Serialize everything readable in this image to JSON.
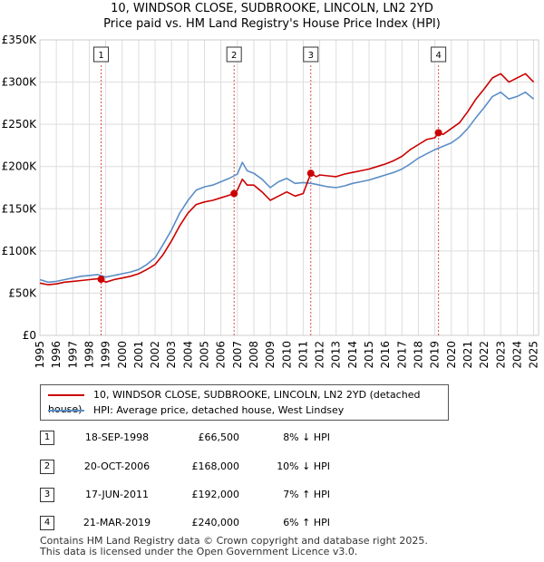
{
  "chart_data": {
    "type": "line",
    "title": "10, WINDSOR CLOSE, SUDBROOKE, LINCOLN, LN2 2YD",
    "subtitle": "Price paid vs. HM Land Registry's House Price Index (HPI)",
    "xlabel": "",
    "ylabel": "",
    "xlim": [
      1995,
      2025.3
    ],
    "ylim": [
      0,
      350000
    ],
    "y_ticks": [
      0,
      50000,
      100000,
      150000,
      200000,
      250000,
      300000,
      350000
    ],
    "y_tick_labels": [
      "£0",
      "£50K",
      "£100K",
      "£150K",
      "£200K",
      "£250K",
      "£300K",
      "£350K"
    ],
    "x_ticks": [
      1995,
      1996,
      1997,
      1998,
      1999,
      2000,
      2001,
      2002,
      2003,
      2004,
      2005,
      2006,
      2007,
      2008,
      2009,
      2010,
      2011,
      2012,
      2013,
      2014,
      2015,
      2016,
      2017,
      2018,
      2019,
      2020,
      2021,
      2022,
      2023,
      2024,
      2025
    ],
    "x_tick_labels": [
      "1995",
      "1996",
      "1997",
      "1998",
      "1999",
      "2000",
      "2001",
      "2002",
      "2003",
      "2004",
      "2005",
      "2006",
      "2007",
      "2008",
      "2009",
      "2010",
      "2011",
      "2012",
      "2013",
      "2014",
      "2015",
      "2016",
      "2017",
      "2018",
      "2019",
      "2020",
      "2021",
      "2022",
      "2023",
      "2024",
      "2025"
    ],
    "grid": true,
    "series": [
      {
        "name": "10, WINDSOR CLOSE, SUDBROOKE, LINCOLN, LN2 2YD (detached house)",
        "color": "#cc0000",
        "x": [
          1995.0,
          1995.5,
          1996.0,
          1996.5,
          1997.0,
          1997.5,
          1998.0,
          1998.5,
          1998.72,
          1999.0,
          1999.5,
          2000.0,
          2000.5,
          2001.0,
          2001.5,
          2002.0,
          2002.5,
          2003.0,
          2003.5,
          2004.0,
          2004.5,
          2005.0,
          2005.5,
          2006.0,
          2006.5,
          2006.8,
          2007.0,
          2007.3,
          2007.6,
          2008.0,
          2008.5,
          2009.0,
          2009.5,
          2010.0,
          2010.5,
          2011.0,
          2011.46,
          2011.8,
          2012.0,
          2012.5,
          2013.0,
          2013.5,
          2014.0,
          2014.5,
          2015.0,
          2015.5,
          2016.0,
          2016.5,
          2017.0,
          2017.5,
          2018.0,
          2018.5,
          2019.0,
          2019.22,
          2019.5,
          2020.0,
          2020.5,
          2021.0,
          2021.5,
          2022.0,
          2022.5,
          2023.0,
          2023.5,
          2024.0,
          2024.5,
          2025.0
        ],
        "y": [
          62000,
          60000,
          61000,
          63000,
          64000,
          65000,
          66000,
          67000,
          66500,
          63000,
          66000,
          68000,
          70000,
          73000,
          78000,
          84000,
          96000,
          112000,
          130000,
          145000,
          155000,
          158000,
          160000,
          163000,
          166000,
          168000,
          172000,
          185000,
          178000,
          178000,
          170000,
          160000,
          165000,
          170000,
          165000,
          168000,
          192000,
          188000,
          190000,
          189000,
          188000,
          191000,
          193000,
          195000,
          197000,
          200000,
          203000,
          207000,
          212000,
          220000,
          226000,
          232000,
          234000,
          240000,
          238000,
          245000,
          252000,
          265000,
          280000,
          292000,
          305000,
          310000,
          300000,
          305000,
          310000,
          300000
        ]
      },
      {
        "name": "HPI: Average price, detached house, West Lindsey",
        "color": "#5b8ec7",
        "x": [
          1995.0,
          1995.5,
          1996.0,
          1996.5,
          1997.0,
          1997.5,
          1998.0,
          1998.5,
          1999.0,
          1999.5,
          2000.0,
          2000.5,
          2001.0,
          2001.5,
          2002.0,
          2002.5,
          2003.0,
          2003.5,
          2004.0,
          2004.5,
          2005.0,
          2005.5,
          2006.0,
          2006.5,
          2007.0,
          2007.3,
          2007.6,
          2008.0,
          2008.5,
          2009.0,
          2009.5,
          2010.0,
          2010.5,
          2011.0,
          2011.5,
          2012.0,
          2012.5,
          2013.0,
          2013.5,
          2014.0,
          2014.5,
          2015.0,
          2015.5,
          2016.0,
          2016.5,
          2017.0,
          2017.5,
          2018.0,
          2018.5,
          2019.0,
          2019.5,
          2020.0,
          2020.5,
          2021.0,
          2021.5,
          2022.0,
          2022.5,
          2023.0,
          2023.5,
          2024.0,
          2024.5,
          2025.0
        ],
        "y": [
          66000,
          63000,
          64000,
          66000,
          68000,
          70000,
          71000,
          72000,
          69000,
          71000,
          73000,
          75000,
          78000,
          84000,
          92000,
          108000,
          125000,
          145000,
          160000,
          172000,
          176000,
          178000,
          182000,
          186000,
          191000,
          205000,
          195000,
          192000,
          185000,
          175000,
          182000,
          186000,
          180000,
          181000,
          180000,
          178000,
          176000,
          175000,
          177000,
          180000,
          182000,
          184000,
          187000,
          190000,
          193000,
          197000,
          203000,
          210000,
          215000,
          220000,
          224000,
          228000,
          235000,
          245000,
          258000,
          270000,
          283000,
          288000,
          280000,
          283000,
          288000,
          280000
        ]
      }
    ],
    "sales": [
      {
        "id": "1",
        "x": 1998.72,
        "y": 66500
      },
      {
        "id": "2",
        "x": 2006.8,
        "y": 168000
      },
      {
        "id": "3",
        "x": 2011.46,
        "y": 192000
      },
      {
        "id": "4",
        "x": 2019.22,
        "y": 240000
      }
    ]
  },
  "legend": {
    "property_label": "10, WINDSOR CLOSE, SUDBROOKE, LINCOLN, LN2 2YD (detached house)",
    "hpi_label": "HPI: Average price, detached house, West Lindsey"
  },
  "transactions": [
    {
      "num": "1",
      "date": "18-SEP-1998",
      "price": "£66,500",
      "delta": "8% ↓ HPI"
    },
    {
      "num": "2",
      "date": "20-OCT-2006",
      "price": "£168,000",
      "delta": "10% ↓ HPI"
    },
    {
      "num": "3",
      "date": "17-JUN-2011",
      "price": "£192,000",
      "delta": "7% ↑ HPI"
    },
    {
      "num": "4",
      "date": "21-MAR-2019",
      "price": "£240,000",
      "delta": "6% ↑ HPI"
    }
  ],
  "footer": {
    "line1": "Contains HM Land Registry data © Crown copyright and database right 2025.",
    "line2": "This data is licensed under the Open Government Licence v3.0."
  }
}
